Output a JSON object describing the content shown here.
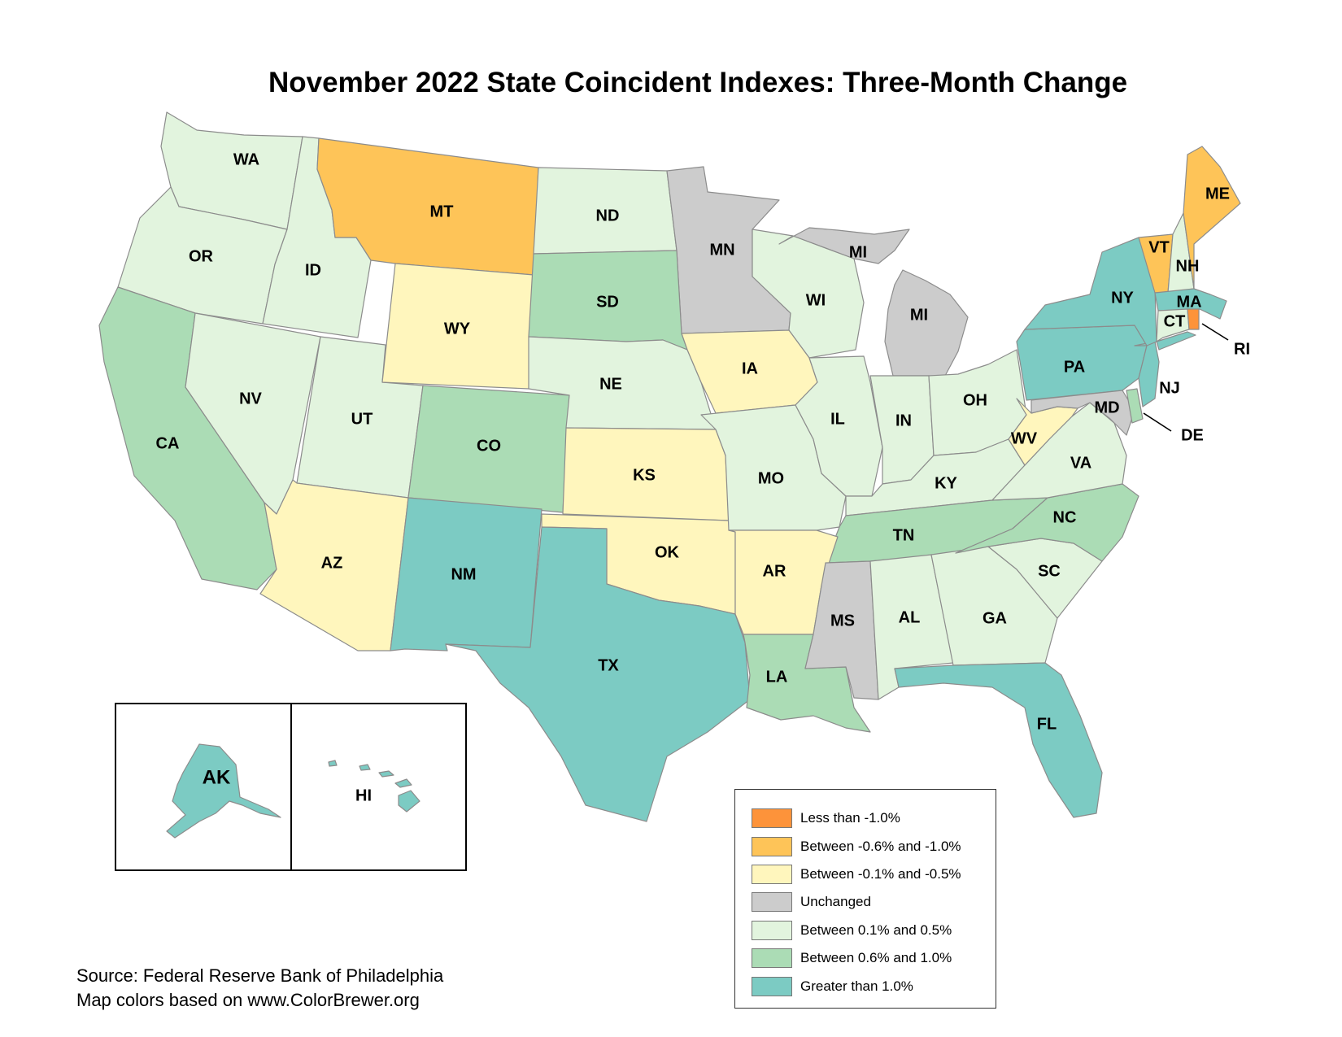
{
  "title": "November 2022 State Coincident Indexes: Three-Month Change",
  "colors": {
    "lt_neg1": "#fd933a",
    "neg06_neg10": "#fec458",
    "neg01_neg05": "#fff6bd",
    "unchanged": "#cccccc",
    "pos01_05": "#e2f4de",
    "pos06_10": "#abdcb5",
    "gt1": "#7ccbc3"
  },
  "legend": [
    {
      "label": "Less than -1.0%",
      "class": "lt_neg1"
    },
    {
      "label": "Between -0.6% and -1.0%",
      "class": "neg06_neg10"
    },
    {
      "label": "Between -0.1% and -0.5%",
      "class": "neg01_neg05"
    },
    {
      "label": "Unchanged",
      "class": "unchanged"
    },
    {
      "label": "Between 0.1% and 0.5%",
      "class": "pos01_05"
    },
    {
      "label": "Between 0.6% and 1.0%",
      "class": "pos06_10"
    },
    {
      "label": "Greater than 1.0%",
      "class": "gt1"
    }
  ],
  "states": {
    "WA": "pos01_05",
    "OR": "pos01_05",
    "ID": "pos01_05",
    "MT": "neg06_neg10",
    "ND": "pos01_05",
    "MN": "unchanged",
    "WI": "pos01_05",
    "MI": "unchanged",
    "CA": "pos06_10",
    "NV": "pos01_05",
    "UT": "pos01_05",
    "WY": "neg01_neg05",
    "SD": "pos06_10",
    "IA": "neg01_neg05",
    "IL": "pos01_05",
    "IN": "pos01_05",
    "OH": "pos01_05",
    "PA": "gt1",
    "NY": "gt1",
    "VT": "neg06_neg10",
    "NH": "pos01_05",
    "ME": "neg06_neg10",
    "MA": "gt1",
    "RI": "lt_neg1",
    "CT": "pos01_05",
    "NJ": "gt1",
    "DE": "pos06_10",
    "MD": "unchanged",
    "WV": "neg01_neg05",
    "VA": "pos01_05",
    "NC": "pos06_10",
    "SC": "pos01_05",
    "GA": "pos01_05",
    "FL": "gt1",
    "AL": "pos01_05",
    "MS": "unchanged",
    "TN": "pos06_10",
    "KY": "pos01_05",
    "AR": "neg01_neg05",
    "LA": "pos06_10",
    "TX": "gt1",
    "OK": "neg01_neg05",
    "KS": "neg01_neg05",
    "MO": "pos01_05",
    "NE": "pos01_05",
    "CO": "pos06_10",
    "NM": "gt1",
    "AZ": "neg01_neg05",
    "AK": "gt1",
    "HI": "gt1"
  },
  "source": {
    "line1": "Source: Federal Reserve Bank of Philadelphia",
    "line2": "Map colors based on www.ColorBrewer.org"
  }
}
